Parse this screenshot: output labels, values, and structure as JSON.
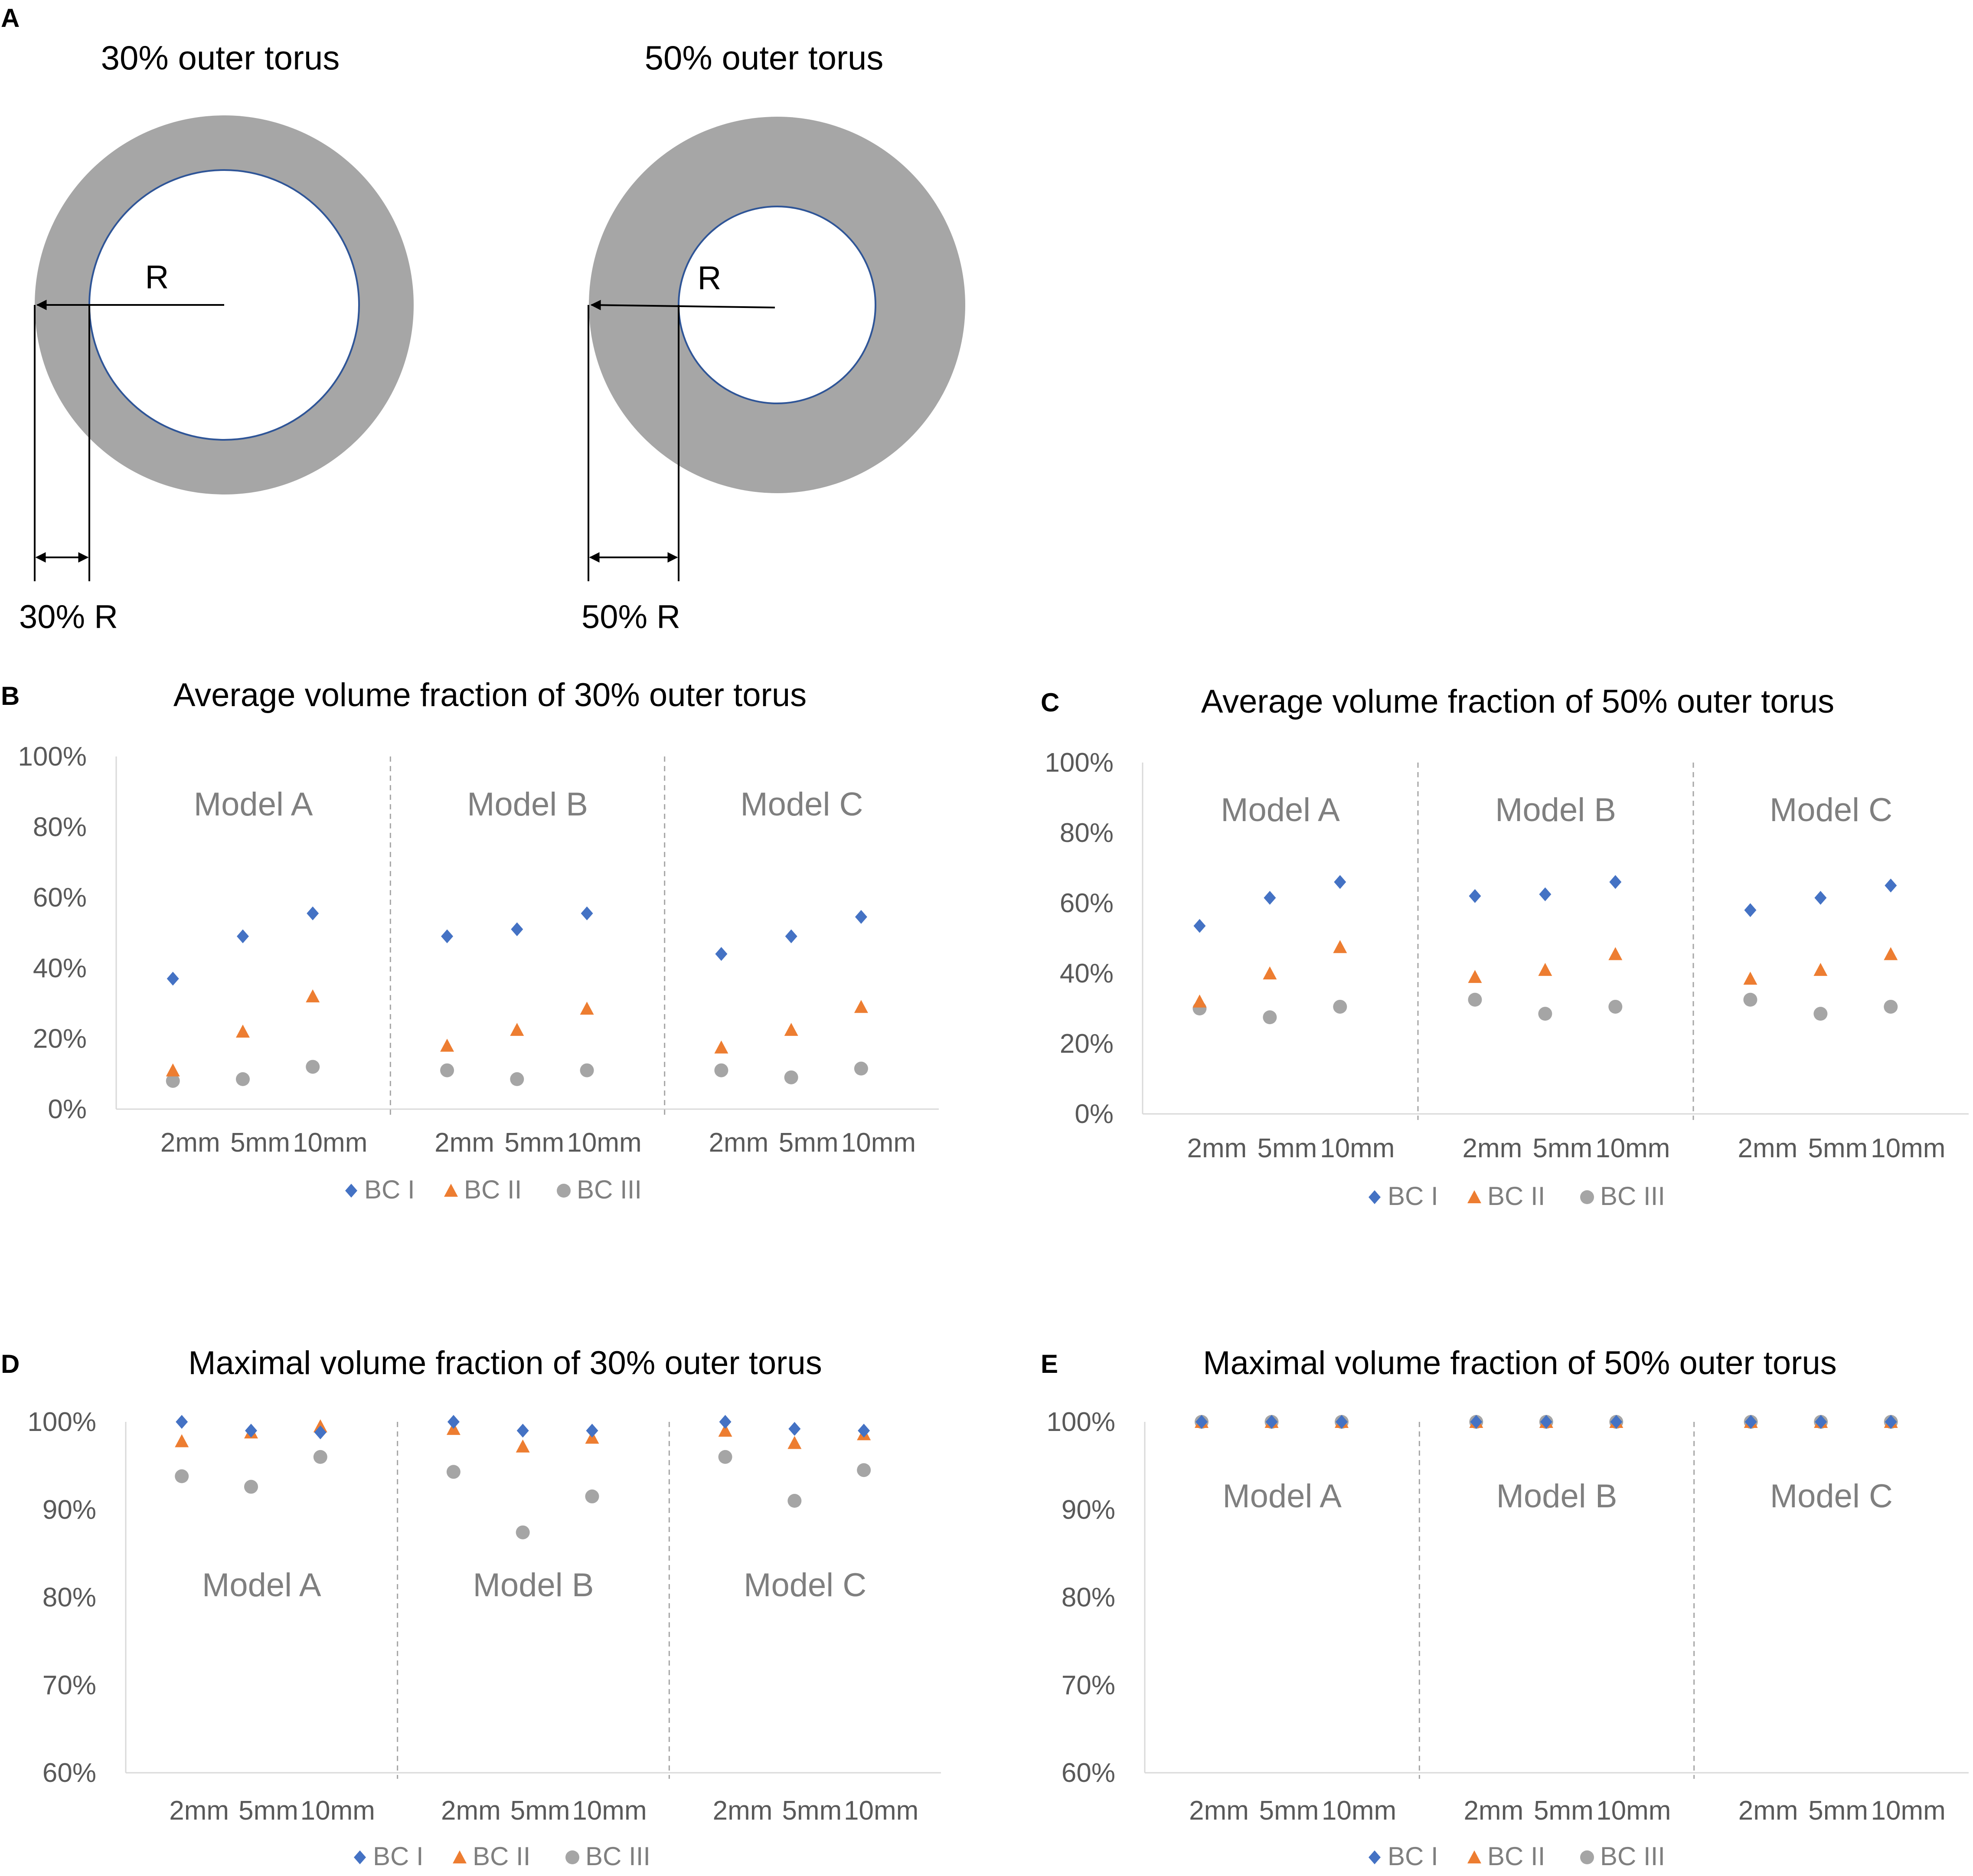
{
  "panel_a": {
    "letter": "A",
    "left": {
      "title": "30% outer torus",
      "radius_label": "R",
      "thickness_label": "30% R"
    },
    "right": {
      "title": "50% outer torus",
      "radius_label": "R",
      "thickness_label": "50% R"
    },
    "colors": {
      "torus": "#a6a6a6",
      "inner_outline": "#2f5597",
      "arrow": "#000000"
    }
  },
  "series_meta": [
    {
      "name": "BC I",
      "marker": "diamond",
      "color": "#4472c4"
    },
    {
      "name": "BC II",
      "marker": "triangle",
      "color": "#ed7d31"
    },
    {
      "name": "BC III",
      "marker": "circle",
      "color": "#a5a5a5"
    }
  ],
  "chart_data": [
    {
      "panel": "B",
      "type": "scatter",
      "title": "Average volume fraction of 30% outer torus",
      "groups": [
        "Model A",
        "Model B",
        "Model C"
      ],
      "categories": [
        "2mm",
        "5mm",
        "10mm"
      ],
      "ylim": [
        0,
        100
      ],
      "yticks": [
        0,
        20,
        40,
        60,
        80,
        100
      ],
      "ytick_labels": [
        "0%",
        "20%",
        "40%",
        "60%",
        "80%",
        "100%"
      ],
      "legend_position": "bottom",
      "series": [
        {
          "name": "BC I",
          "values": [
            [
              37,
              49,
              55.5
            ],
            [
              49,
              51,
              55.5
            ],
            [
              44,
              49,
              54.5
            ]
          ]
        },
        {
          "name": "BC II",
          "values": [
            [
              11,
              22,
              32
            ],
            [
              18,
              22.5,
              28.5
            ],
            [
              17.5,
              22.5,
              29
            ]
          ]
        },
        {
          "name": "BC III",
          "values": [
            [
              8,
              8.5,
              12
            ],
            [
              11,
              8.5,
              11
            ],
            [
              11,
              9,
              11.5
            ]
          ]
        }
      ]
    },
    {
      "panel": "C",
      "type": "scatter",
      "title": "Average volume fraction of 50% outer torus",
      "groups": [
        "Model A",
        "Model B",
        "Model C"
      ],
      "categories": [
        "2mm",
        "5mm",
        "10mm"
      ],
      "ylim": [
        0,
        100
      ],
      "yticks": [
        0,
        20,
        40,
        60,
        80,
        100
      ],
      "ytick_labels": [
        "0%",
        "20%",
        "40%",
        "60%",
        "80%",
        "100%"
      ],
      "legend_position": "bottom",
      "series": [
        {
          "name": "BC I",
          "values": [
            [
              53.5,
              61.5,
              66
            ],
            [
              62,
              62.5,
              66
            ],
            [
              58,
              61.5,
              65
            ]
          ]
        },
        {
          "name": "BC II",
          "values": [
            [
              32,
              40,
              47.5
            ],
            [
              39,
              41,
              45.5
            ],
            [
              38.5,
              41,
              45.5
            ]
          ]
        },
        {
          "name": "BC III",
          "values": [
            [
              30,
              27.5,
              30.5
            ],
            [
              32.5,
              28.5,
              30.5
            ],
            [
              32.5,
              28.5,
              30.5
            ]
          ]
        }
      ]
    },
    {
      "panel": "D",
      "type": "scatter",
      "title": "Maximal volume fraction of 30% outer torus",
      "groups": [
        "Model A",
        "Model B",
        "Model C"
      ],
      "categories": [
        "2mm",
        "5mm",
        "10mm"
      ],
      "ylim": [
        60,
        100
      ],
      "yticks": [
        60,
        70,
        80,
        90,
        100
      ],
      "ytick_labels": [
        "60%",
        "70%",
        "80%",
        "90%",
        "100%"
      ],
      "legend_position": "bottom",
      "series": [
        {
          "name": "BC I",
          "values": [
            [
              100,
              99,
              98.8
            ],
            [
              100,
              99,
              99
            ],
            [
              100,
              99.2,
              99
            ]
          ]
        },
        {
          "name": "BC II",
          "values": [
            [
              97.8,
              98.8,
              99.5
            ],
            [
              99.2,
              97.2,
              98.2
            ],
            [
              99,
              97.6,
              98.6
            ]
          ]
        },
        {
          "name": "BC III",
          "values": [
            [
              93.8,
              92.6,
              96
            ],
            [
              94.3,
              87.4,
              91.5
            ],
            [
              96,
              91,
              94.5
            ]
          ]
        }
      ]
    },
    {
      "panel": "E",
      "type": "scatter",
      "title": "Maximal volume fraction of 50% outer torus",
      "groups": [
        "Model A",
        "Model B",
        "Model C"
      ],
      "categories": [
        "2mm",
        "5mm",
        "10mm"
      ],
      "ylim": [
        60,
        100
      ],
      "yticks": [
        60,
        70,
        80,
        90,
        100
      ],
      "ytick_labels": [
        "60%",
        "70%",
        "80%",
        "90%",
        "100%"
      ],
      "legend_position": "bottom",
      "series": [
        {
          "name": "BC I",
          "values": [
            [
              100,
              100,
              100
            ],
            [
              100,
              100,
              100
            ],
            [
              100,
              100,
              100
            ]
          ]
        },
        {
          "name": "BC II",
          "values": [
            [
              100,
              100,
              100
            ],
            [
              100,
              100,
              100
            ],
            [
              100,
              100,
              100
            ]
          ]
        },
        {
          "name": "BC III",
          "values": [
            [
              100,
              100,
              100
            ],
            [
              100,
              100,
              100
            ],
            [
              100,
              100,
              100
            ]
          ]
        }
      ]
    }
  ]
}
